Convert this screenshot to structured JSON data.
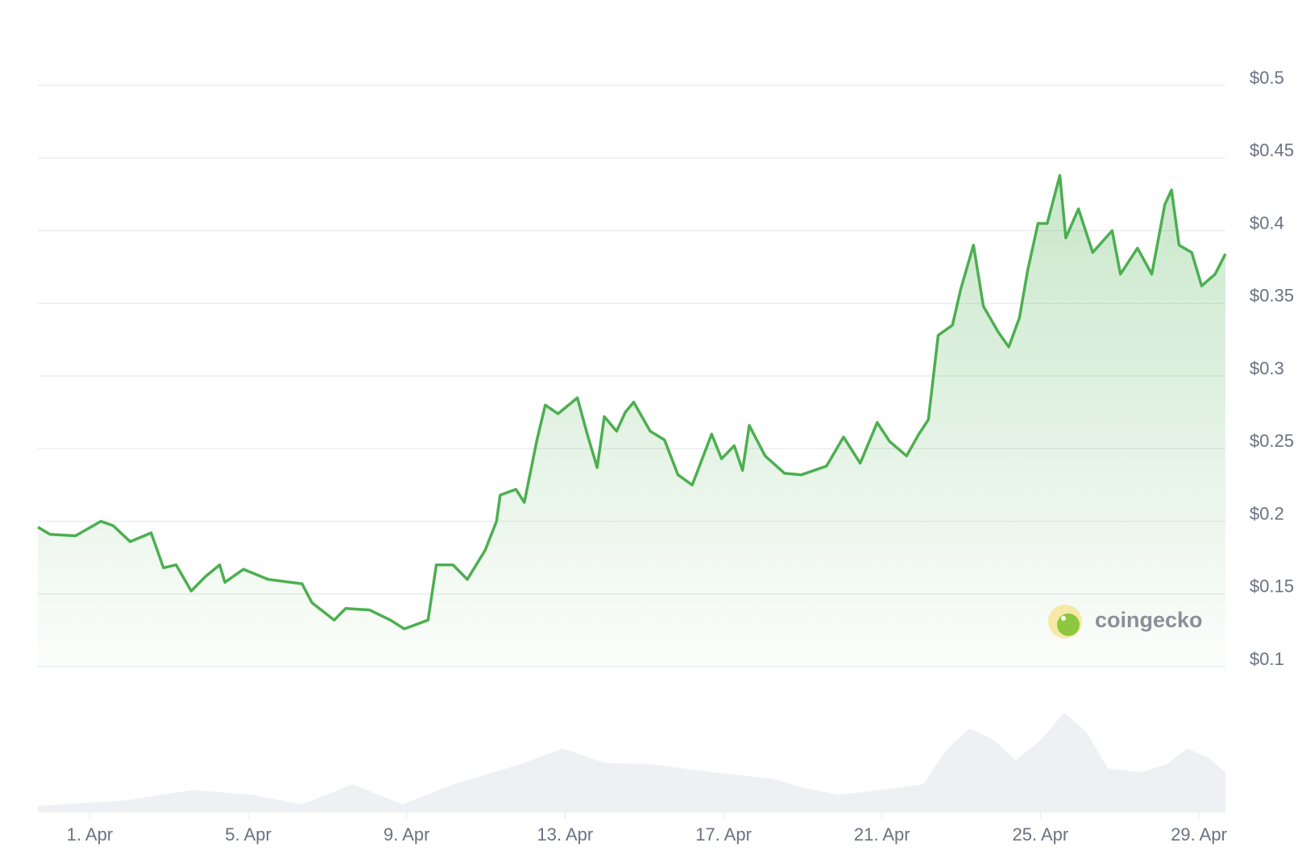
{
  "chart_data": {
    "type": "line",
    "watermark": "coingecko",
    "xlim": [
      -0.31,
      29.67
    ],
    "xticks": [
      {
        "value": 1,
        "label": "1. Apr"
      },
      {
        "value": 5,
        "label": "5. Apr"
      },
      {
        "value": 9,
        "label": "9. Apr"
      },
      {
        "value": 13,
        "label": "13. Apr"
      },
      {
        "value": 17,
        "label": "17. Apr"
      },
      {
        "value": 21,
        "label": "21. Apr"
      },
      {
        "value": 25,
        "label": "25. Apr"
      },
      {
        "value": 29,
        "label": "29. Apr"
      }
    ],
    "ylim": [
      0.1,
      0.5
    ],
    "yticks": [
      {
        "value": 0.1,
        "label": "$0.1"
      },
      {
        "value": 0.15,
        "label": "$0.15"
      },
      {
        "value": 0.2,
        "label": "$0.2"
      },
      {
        "value": 0.25,
        "label": "$0.25"
      },
      {
        "value": 0.3,
        "label": "$0.3"
      },
      {
        "value": 0.35,
        "label": "$0.35"
      },
      {
        "value": 0.4,
        "label": "$0.4"
      },
      {
        "value": 0.45,
        "label": "$0.45"
      },
      {
        "value": 0.5,
        "label": "$0.5"
      }
    ],
    "y2lim": [
      0,
      130
    ],
    "grid": true,
    "series": [
      {
        "color": "#4caf50",
        "x": [
          -0.31,
          0.0,
          0.64,
          1.28,
          1.59,
          2.02,
          2.55,
          2.86,
          3.18,
          3.56,
          3.92,
          4.28,
          4.41,
          4.88,
          5.51,
          6.36,
          6.61,
          7.17,
          7.46,
          8.06,
          8.59,
          8.94,
          9.54,
          9.75,
          10.17,
          10.53,
          10.98,
          11.27,
          11.36,
          11.76,
          11.97,
          12.29,
          12.5,
          12.82,
          13.31,
          13.56,
          13.81,
          13.99,
          14.3,
          14.52,
          14.73,
          15.15,
          15.51,
          15.85,
          16.21,
          16.7,
          16.95,
          17.27,
          17.48,
          17.65,
          18.05,
          18.54,
          18.97,
          19.6,
          20.03,
          20.45,
          20.88,
          21.19,
          21.62,
          21.93,
          22.17,
          22.42,
          22.78,
          22.99,
          23.31,
          23.56,
          23.94,
          24.2,
          24.47,
          24.68,
          24.94,
          25.17,
          25.49,
          25.64,
          25.96,
          26.32,
          26.81,
          27.02,
          27.45,
          27.81,
          28.14,
          28.31,
          28.5,
          28.82,
          29.07,
          29.41,
          29.67
        ],
        "values": [
          0.196,
          0.191,
          0.19,
          0.2,
          0.197,
          0.186,
          0.192,
          0.168,
          0.17,
          0.152,
          0.162,
          0.17,
          0.158,
          0.167,
          0.16,
          0.157,
          0.144,
          0.132,
          0.14,
          0.139,
          0.132,
          0.126,
          0.132,
          0.17,
          0.17,
          0.16,
          0.18,
          0.2,
          0.218,
          0.222,
          0.213,
          0.256,
          0.28,
          0.274,
          0.285,
          0.26,
          0.237,
          0.272,
          0.262,
          0.275,
          0.282,
          0.262,
          0.256,
          0.232,
          0.225,
          0.26,
          0.243,
          0.252,
          0.235,
          0.266,
          0.245,
          0.233,
          0.232,
          0.238,
          0.258,
          0.24,
          0.268,
          0.255,
          0.245,
          0.26,
          0.27,
          0.328,
          0.335,
          0.36,
          0.39,
          0.348,
          0.33,
          0.32,
          0.34,
          0.373,
          0.405,
          0.405,
          0.438,
          0.395,
          0.415,
          0.385,
          0.4,
          0.37,
          0.388,
          0.37,
          0.418,
          0.428,
          0.39,
          0.385,
          0.362,
          0.37,
          0.384
        ]
      },
      {
        "color": "#eef0f3",
        "axis": "y2",
        "x": [
          -0.31,
          1.91,
          3.61,
          5.09,
          6.36,
          7.63,
          8.9,
          10.17,
          11.87,
          12.93,
          13.99,
          15.26,
          16.74,
          18.22,
          19.07,
          19.92,
          20.98,
          22.04,
          22.57,
          23.2,
          23.84,
          24.37,
          25.0,
          25.6,
          26.17,
          26.7,
          27.55,
          28.18,
          28.71,
          29.24,
          29.67
        ],
        "values": [
          8,
          15,
          28,
          22,
          10,
          35,
          10,
          35,
          60,
          80,
          62,
          60,
          50,
          42,
          30,
          22,
          28,
          35,
          75,
          105,
          90,
          65,
          90,
          125,
          100,
          55,
          50,
          60,
          80,
          68,
          50
        ]
      }
    ]
  }
}
